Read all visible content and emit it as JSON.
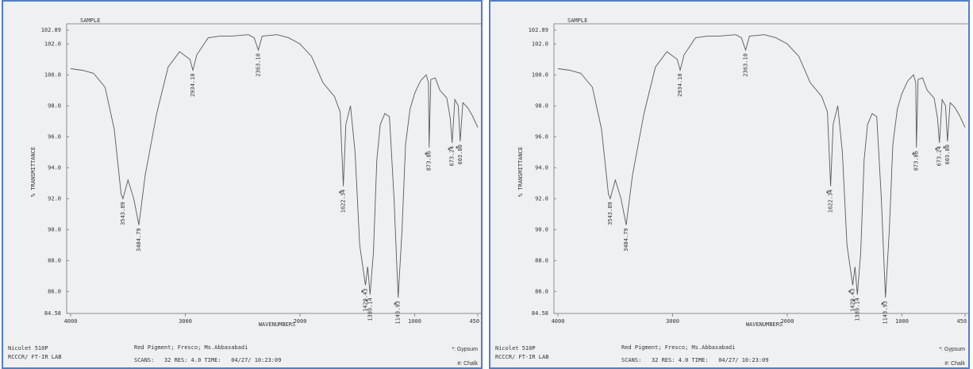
{
  "chart_data": [
    {
      "type": "line",
      "title": "SAMPLE",
      "xlabel": "WAVENUMBERS",
      "ylabel": "% TRANSMITTANCE",
      "xlim": [
        4000,
        450
      ],
      "xticks": [
        4000,
        3000,
        2000,
        1000,
        {
          "value": 450,
          "label": "450.0"
        }
      ],
      "ylim": [
        84.58,
        102.89
      ],
      "yticks": [
        {
          "value": 84.58,
          "label": "84.58"
        },
        {
          "value": 86,
          "label": "86.0"
        },
        {
          "value": 88,
          "label": "88.0"
        },
        {
          "value": 90,
          "label": "90.0"
        },
        {
          "value": 92,
          "label": "92.0"
        },
        {
          "value": 94,
          "label": "94.0"
        },
        {
          "value": 96,
          "label": "96.0"
        },
        {
          "value": 98,
          "label": "98.0"
        },
        {
          "value": 100,
          "label": "100.0"
        },
        {
          "value": 102,
          "label": "102.0"
        },
        {
          "value": 102.89,
          "label": "102.89"
        }
      ],
      "color": "#5a5a5a",
      "x": [
        4000,
        3900,
        3800,
        3700,
        3620,
        3560,
        3543.89,
        3500,
        3450,
        3404.79,
        3350,
        3250,
        3150,
        3050,
        2960,
        2934.1,
        2900,
        2800,
        2700,
        2600,
        2450,
        2400,
        2363.1,
        2330,
        2200,
        2100,
        2000,
        1900,
        1800,
        1700,
        1650,
        1622.34,
        1600,
        1560,
        1520,
        1480,
        1429.43,
        1410,
        1389.14,
        1360,
        1330,
        1300,
        1260,
        1220,
        1180,
        1143.93,
        1110,
        1080,
        1040,
        1000,
        950,
        900,
        880,
        873.86,
        860,
        820,
        780,
        720,
        690,
        673.24,
        650,
        620,
        603.8,
        580,
        540,
        500,
        450
      ],
      "values": [
        100.4,
        100.3,
        100.1,
        99.2,
        96.5,
        92.3,
        92.0,
        93.2,
        92.0,
        90.3,
        93.5,
        97.5,
        100.5,
        101.5,
        101.0,
        100.3,
        101.3,
        102.4,
        102.5,
        102.5,
        102.6,
        102.4,
        101.6,
        102.5,
        102.6,
        102.4,
        102.0,
        101.2,
        99.5,
        98.6,
        97.6,
        92.8,
        96.8,
        98.0,
        95.0,
        89.0,
        86.4,
        87.6,
        85.8,
        88.5,
        94.5,
        96.8,
        97.5,
        97.3,
        92.0,
        85.6,
        90.0,
        95.5,
        97.8,
        98.8,
        99.6,
        100.0,
        99.5,
        95.3,
        99.7,
        99.8,
        99.0,
        98.5,
        97.2,
        95.6,
        98.4,
        98.0,
        95.7,
        98.2,
        97.9,
        97.4,
        96.6
      ],
      "peaks": [
        {
          "label": "3543.89",
          "x": 3543.89,
          "y": 92.0
        },
        {
          "label": "3404.79",
          "x": 3404.79,
          "y": 90.3
        },
        {
          "label": "2934.10",
          "x": 2934.1,
          "y": 100.3
        },
        {
          "label": "2363.10",
          "x": 2363.1,
          "y": 101.6
        },
        {
          "label": "1622.34",
          "x": 1622.34,
          "y": 92.8,
          "marker": "*"
        },
        {
          "label": "1429.43",
          "x": 1429.43,
          "y": 86.4,
          "marker": "*"
        },
        {
          "label": "1389.14",
          "x": 1389.14,
          "y": 85.8,
          "marker": "*"
        },
        {
          "label": "1143.93",
          "x": 1143.93,
          "y": 85.6,
          "marker": "*"
        },
        {
          "label": "873.86",
          "x": 873.86,
          "y": 95.3,
          "marker": "*"
        },
        {
          "label": "673.24",
          "x": 673.24,
          "y": 95.6,
          "marker": "*"
        },
        {
          "label": "603.80",
          "x": 603.8,
          "y": 95.7,
          "marker": "*"
        }
      ],
      "instrument": [
        "Nicolet 510P",
        "RCCCR/ FT-IR LAB"
      ],
      "sample_info": "Red Pigment; Fresco; Ms.Abbasabadi",
      "scan_info": "SCANS:   32 RES: 4.0 TIME:   04/27/ 10:23:09",
      "notes": [
        "*: Gypsum",
        "#: Chalk"
      ]
    },
    {
      "type": "line",
      "title": "SAMPLE",
      "xlabel": "WAVENUMBERS",
      "ylabel": "% TRANSMITTANCE",
      "xlim": [
        4000,
        450
      ],
      "xticks": [
        4000,
        3000,
        2000,
        1000,
        {
          "value": 450,
          "label": "450.0"
        }
      ],
      "ylim": [
        84.58,
        102.89
      ],
      "yticks": [
        {
          "value": 84.58,
          "label": "84.58"
        },
        {
          "value": 86,
          "label": "86.0"
        },
        {
          "value": 88,
          "label": "88.0"
        },
        {
          "value": 90,
          "label": "90.0"
        },
        {
          "value": 92,
          "label": "92.0"
        },
        {
          "value": 94,
          "label": "94.0"
        },
        {
          "value": 96,
          "label": "96.0"
        },
        {
          "value": 98,
          "label": "98.0"
        },
        {
          "value": 100,
          "label": "100.0"
        },
        {
          "value": 102,
          "label": "102.0"
        },
        {
          "value": 102.89,
          "label": "102.89"
        }
      ],
      "color": "#5a5a5a",
      "x": [
        4000,
        3900,
        3800,
        3700,
        3620,
        3560,
        3543.89,
        3500,
        3450,
        3404.79,
        3350,
        3250,
        3150,
        3050,
        2960,
        2934.1,
        2900,
        2800,
        2700,
        2600,
        2450,
        2400,
        2363.1,
        2330,
        2200,
        2100,
        2000,
        1900,
        1800,
        1700,
        1650,
        1622.34,
        1600,
        1560,
        1520,
        1480,
        1429.43,
        1410,
        1389.14,
        1360,
        1330,
        1300,
        1260,
        1220,
        1180,
        1143.93,
        1110,
        1080,
        1040,
        1000,
        950,
        900,
        880,
        873.86,
        860,
        820,
        780,
        720,
        690,
        673.24,
        650,
        620,
        603.8,
        580,
        540,
        500,
        450
      ],
      "values": [
        100.4,
        100.3,
        100.1,
        99.2,
        96.5,
        92.3,
        92.0,
        93.2,
        92.0,
        90.3,
        93.5,
        97.5,
        100.5,
        101.5,
        101.0,
        100.3,
        101.3,
        102.4,
        102.5,
        102.5,
        102.6,
        102.4,
        101.6,
        102.5,
        102.6,
        102.4,
        102.0,
        101.2,
        99.5,
        98.6,
        97.6,
        92.8,
        96.8,
        98.0,
        95.0,
        89.0,
        86.4,
        87.6,
        85.8,
        88.5,
        94.5,
        96.8,
        97.5,
        97.3,
        92.0,
        85.6,
        90.0,
        95.5,
        97.8,
        98.8,
        99.6,
        100.0,
        99.5,
        95.3,
        99.7,
        99.8,
        99.0,
        98.5,
        97.2,
        95.6,
        98.4,
        98.0,
        95.7,
        98.2,
        97.9,
        97.4,
        96.6
      ],
      "peaks": [
        {
          "label": "3543.89",
          "x": 3543.89,
          "y": 92.0
        },
        {
          "label": "3404.79",
          "x": 3404.79,
          "y": 90.3
        },
        {
          "label": "2934.10",
          "x": 2934.1,
          "y": 100.3
        },
        {
          "label": "2363.10",
          "x": 2363.1,
          "y": 101.6
        },
        {
          "label": "1622.34",
          "x": 1622.34,
          "y": 92.8,
          "marker": "*"
        },
        {
          "label": "1429.43",
          "x": 1429.43,
          "y": 86.4,
          "marker": "*"
        },
        {
          "label": "1389.14",
          "x": 1389.14,
          "y": 85.8,
          "marker": "*"
        },
        {
          "label": "1143.93",
          "x": 1143.93,
          "y": 85.6,
          "marker": "*"
        },
        {
          "label": "873.86",
          "x": 873.86,
          "y": 95.3,
          "marker": "*"
        },
        {
          "label": "673.24",
          "x": 673.24,
          "y": 95.6,
          "marker": "*"
        },
        {
          "label": "603.80",
          "x": 603.8,
          "y": 95.7,
          "marker": "*"
        }
      ],
      "instrument": [
        "Nicolet 510P",
        "RCCCR/ FT-IR LAB"
      ],
      "sample_info": "Red Pigment; Fresco; Ms.Abbasabadi",
      "scan_info": "SCANS:   32 RES: 4.0 TIME:   04/27/ 10:23:09",
      "notes": [
        "*: Gypsum",
        "#: Chalk"
      ]
    }
  ]
}
